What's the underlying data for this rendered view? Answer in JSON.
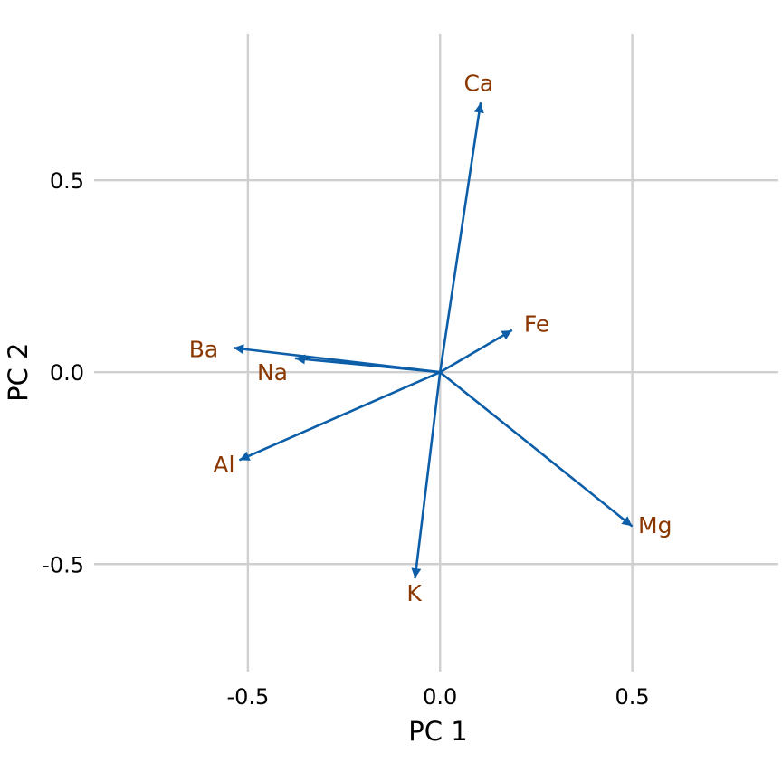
{
  "chart_data": {
    "type": "scatter",
    "subtype": "pca-loadings-biplot",
    "xlabel": "PC 1",
    "ylabel": "PC 2",
    "xlim": [
      -0.9,
      0.88
    ],
    "ylim": [
      -0.78,
      0.88
    ],
    "xticks": [
      -0.5,
      0.0,
      0.5
    ],
    "yticks": [
      -0.5,
      0.0,
      0.5
    ],
    "xtick_labels": [
      "-0.5",
      "0.0",
      "0.5"
    ],
    "ytick_labels": [
      "-0.5",
      "0.0",
      "0.5"
    ],
    "grid": true,
    "arrow_color": "#0c5ea8",
    "label_color": "#8a3700",
    "grid_color": "#cfcfcf",
    "vectors": [
      {
        "name": "Ca",
        "x": 0.105,
        "y": 0.7
      },
      {
        "name": "Fe",
        "x": 0.185,
        "y": 0.108
      },
      {
        "name": "Ba",
        "x": -0.535,
        "y": 0.063
      },
      {
        "name": "Na",
        "x": -0.375,
        "y": 0.036
      },
      {
        "name": "Al",
        "x": -0.52,
        "y": -0.228
      },
      {
        "name": "K",
        "x": -0.065,
        "y": -0.535
      },
      {
        "name": "Mg",
        "x": 0.498,
        "y": -0.4
      }
    ]
  }
}
